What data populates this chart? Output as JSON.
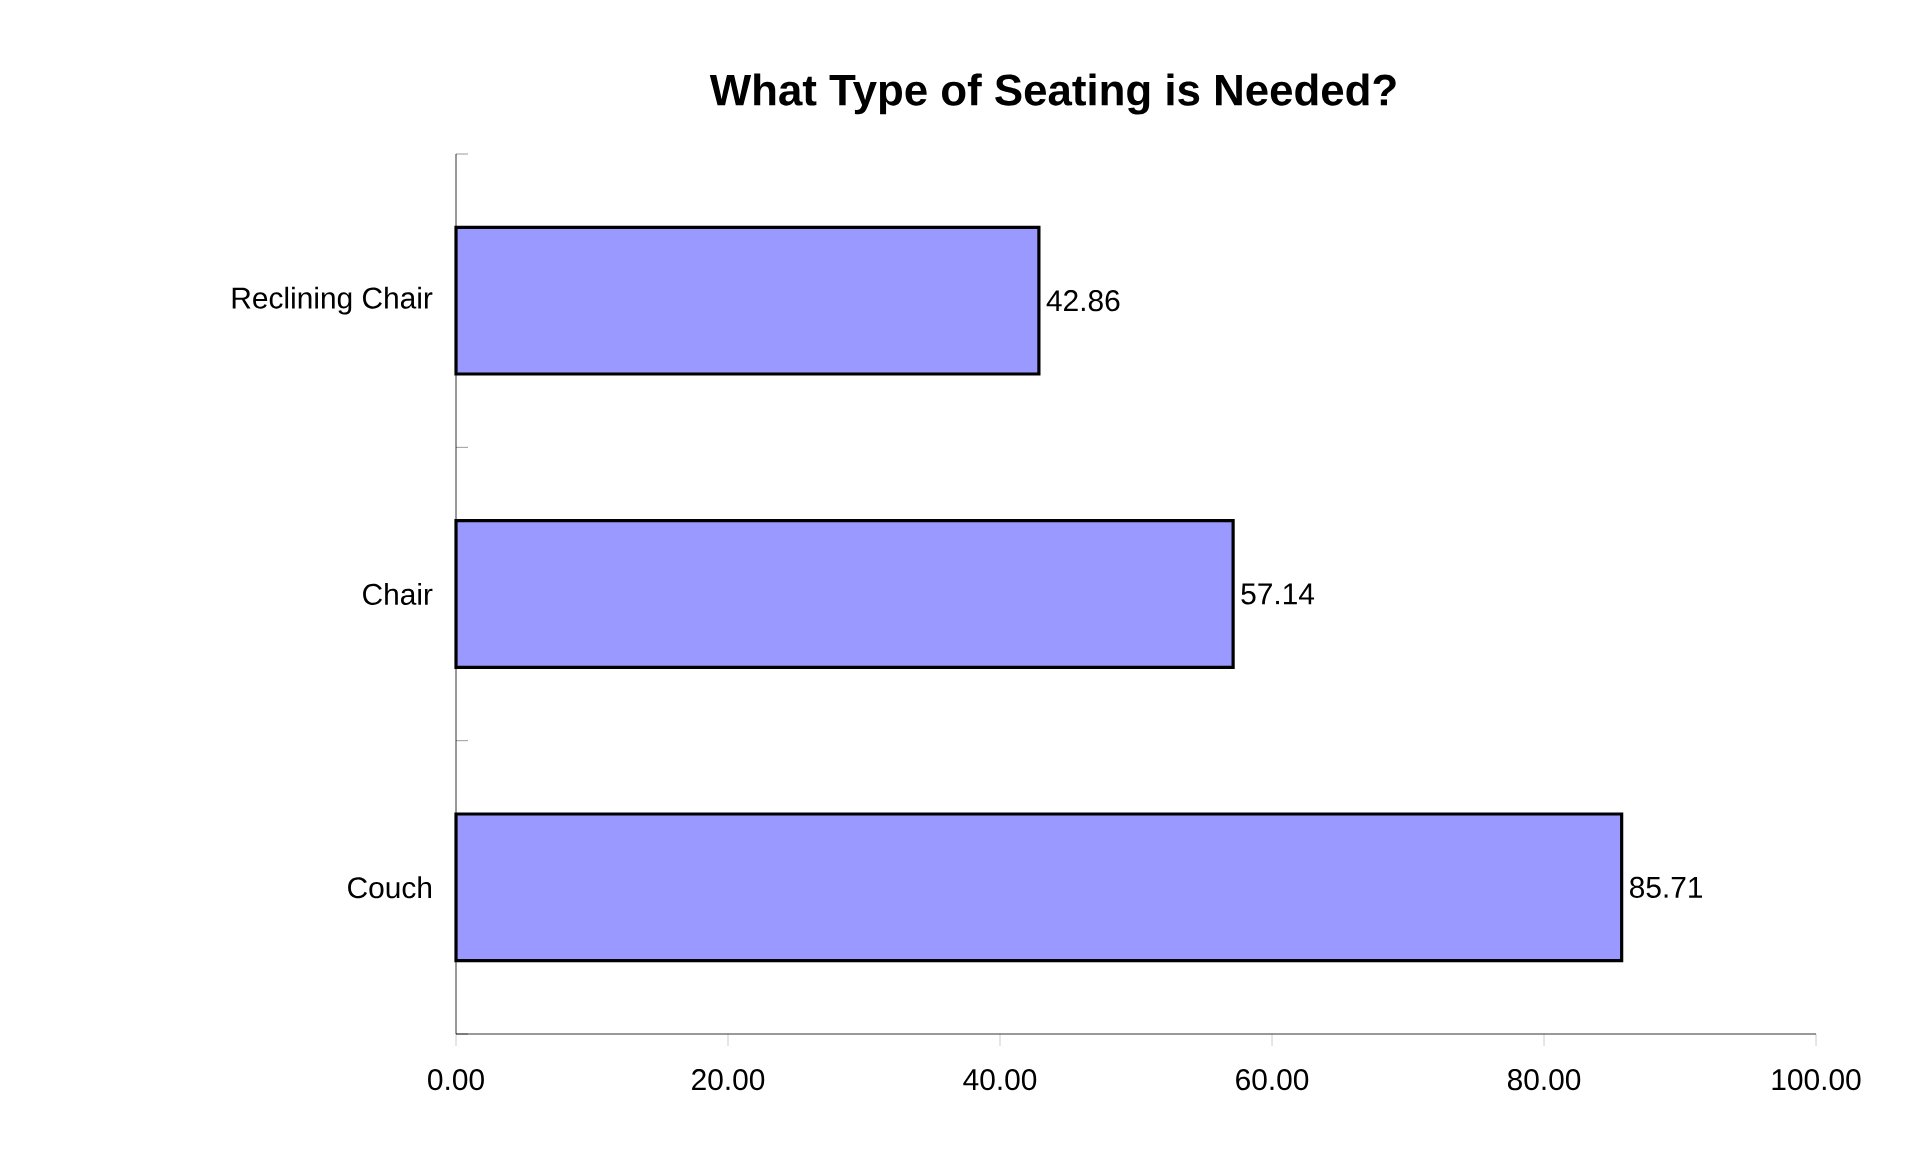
{
  "chart_data": {
    "type": "bar",
    "orientation": "horizontal",
    "title": "What Type of Seating is Needed?",
    "categories": [
      "Reclining Chair",
      "Chair",
      "Couch"
    ],
    "values": [
      42.86,
      57.14,
      85.71
    ],
    "color": "#9999ff",
    "xlim": [
      0,
      100
    ],
    "xticks": [
      {
        "value": 0,
        "label": "0.00"
      },
      {
        "value": 20,
        "label": "20.00"
      },
      {
        "value": 40,
        "label": "40.00"
      },
      {
        "value": 60,
        "label": "60.00"
      },
      {
        "value": 80,
        "label": "80.00"
      },
      {
        "value": 100,
        "label": "100.00"
      }
    ],
    "data_labels": true
  }
}
